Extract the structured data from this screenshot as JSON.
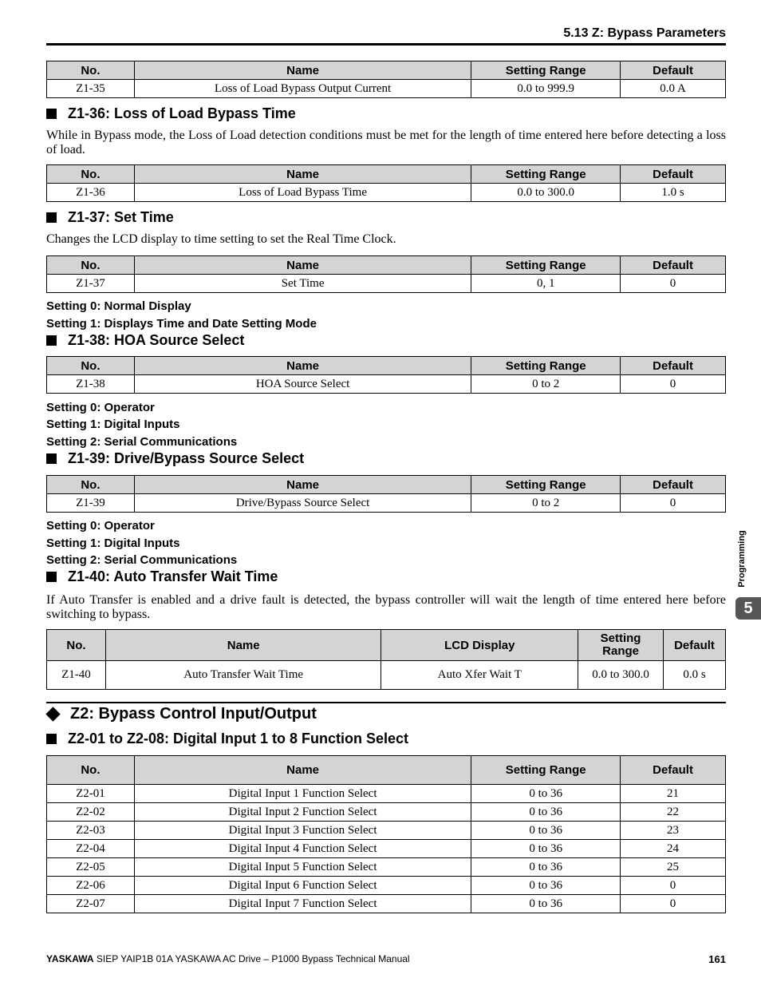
{
  "header": {
    "section": "5.13 Z: Bypass Parameters"
  },
  "cols": {
    "no": "No.",
    "name": "Name",
    "range": "Setting Range",
    "default": "Default",
    "lcd": "LCD Display",
    "range2a": "Setting",
    "range2b": "Range"
  },
  "t1": {
    "no": "Z1-35",
    "name": "Loss of Load Bypass Output Current",
    "range": "0.0 to 999.9",
    "def": "0.0 A"
  },
  "s136": {
    "title": "Z1-36: Loss of Load Bypass Time",
    "text": "While in Bypass mode, the Loss of Load detection conditions must be met for the length of time entered here before detecting a loss of load."
  },
  "t2": {
    "no": "Z1-36",
    "name": "Loss of Load Bypass Time",
    "range": "0.0 to 300.0",
    "def": "1.0 s"
  },
  "s137": {
    "title": "Z1-37: Set Time",
    "text": "Changes the LCD display to time setting to set the Real Time Clock.",
    "set0": "Setting 0: Normal Display",
    "set1": "Setting 1: Displays Time and Date Setting Mode"
  },
  "t3": {
    "no": "Z1-37",
    "name": "Set Time",
    "range": "0, 1",
    "def": "0"
  },
  "s138": {
    "title": "Z1-38: HOA Source Select",
    "set0": "Setting 0: Operator",
    "set1": "Setting 1: Digital Inputs",
    "set2": "Setting 2: Serial Communications"
  },
  "t4": {
    "no": "Z1-38",
    "name": "HOA Source Select",
    "range": "0 to 2",
    "def": "0"
  },
  "s139": {
    "title": "Z1-39: Drive/Bypass Source Select",
    "set0": "Setting 0: Operator",
    "set1": "Setting 1: Digital Inputs",
    "set2": "Setting 2: Serial Communications"
  },
  "t5": {
    "no": "Z1-39",
    "name": "Drive/Bypass Source Select",
    "range": "0 to 2",
    "def": "0"
  },
  "s140": {
    "title": "Z1-40: Auto Transfer Wait Time",
    "text": "If Auto Transfer is enabled and a drive fault is detected, the bypass controller will wait the length of time entered here before switching to bypass."
  },
  "t6": {
    "no": "Z1-40",
    "name": "Auto Transfer Wait Time",
    "lcd": "Auto Xfer Wait T",
    "range": "0.0 to 300.0",
    "def": "0.0 s"
  },
  "z2": {
    "title": "Z2: Bypass Control Input/Output",
    "sub": "Z2-01 to Z2-08: Digital Input 1 to 8 Function Select"
  },
  "t7": [
    {
      "no": "Z2-01",
      "name": "Digital Input 1 Function Select",
      "range": "0 to 36",
      "def": "21"
    },
    {
      "no": "Z2-02",
      "name": "Digital Input 2 Function Select",
      "range": "0 to 36",
      "def": "22"
    },
    {
      "no": "Z2-03",
      "name": "Digital Input 3 Function Select",
      "range": "0 to 36",
      "def": "23"
    },
    {
      "no": "Z2-04",
      "name": "Digital Input 4 Function Select",
      "range": "0 to 36",
      "def": "24"
    },
    {
      "no": "Z2-05",
      "name": "Digital Input 5 Function Select",
      "range": "0 to 36",
      "def": "25"
    },
    {
      "no": "Z2-06",
      "name": "Digital Input 6 Function Select",
      "range": "0 to 36",
      "def": "0"
    },
    {
      "no": "Z2-07",
      "name": "Digital Input 7 Function Select",
      "range": "0 to 36",
      "def": "0"
    }
  ],
  "side": {
    "label": "Programming",
    "chapter": "5"
  },
  "footer": {
    "brand": "YASKAWA",
    "text": " SIEP YAIP1B 01A YASKAWA AC Drive – P1000 Bypass Technical Manual",
    "page": "161"
  }
}
